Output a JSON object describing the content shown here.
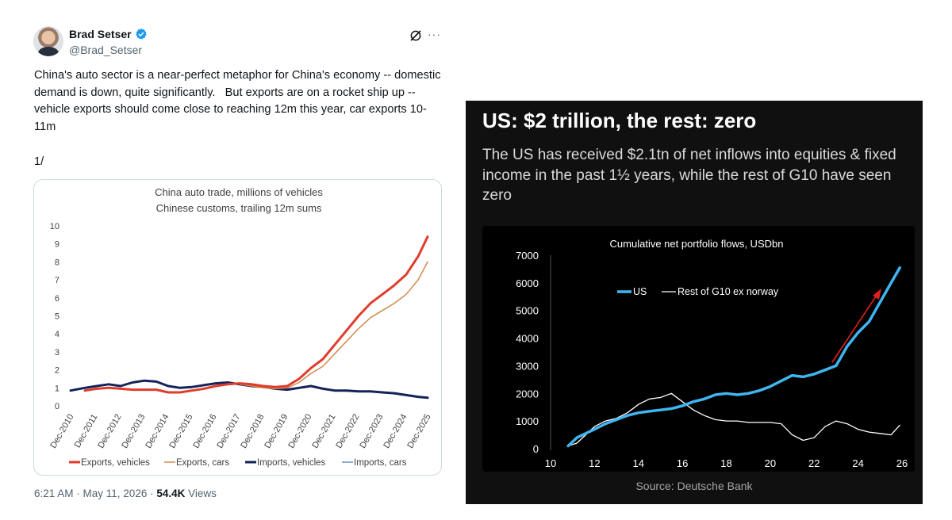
{
  "tweet": {
    "author": {
      "display_name": "Brad Setser",
      "handle": "@Brad_Setser"
    },
    "text": "China's auto sector is a near-perfect metaphor for China's economy -- domestic demand is down, quite significantly.   But exports are on a rocket ship up -- vehicle exports should come close to reaching 12m this year, car exports 10-11m",
    "thread_number": "1/",
    "timestamp": "6:21 AM · May 11, 2026 · ",
    "views_count": "54.4K",
    "views_label": " Views",
    "icons": {
      "verified": "verified-badge-icon",
      "grok": "grok-icon",
      "more": "more-icon"
    },
    "colors": {
      "verified": "#1d9bf0",
      "text_secondary": "#536471",
      "border": "#cfd9de"
    }
  },
  "image": {
    "title": "US: $2 trillion, the rest: zero",
    "subtitle": "The US has received $2.1tn of net inflows into equities & fixed income in the past 1½ years, while the rest of G10 have seen zero",
    "source": "Source: Deutsche Bank"
  },
  "chart_data": [
    {
      "type": "line",
      "title": "China auto trade, millions of vehicles",
      "subtitle": "Chinese customs, trailing 12m sums",
      "xlabel": "",
      "ylabel": "",
      "ylim": [
        0,
        10
      ],
      "yticks": [
        "0",
        "1",
        "2",
        "3",
        "4",
        "5",
        "6",
        "7",
        "8",
        "9",
        "10"
      ],
      "xticks": [
        "Dec-2010",
        "Dec-2011",
        "Dec-2012",
        "Dec-2013",
        "Dec-2014",
        "Dec-2015",
        "Dec-2016",
        "Dec-2017",
        "Dec-2018",
        "Dec-2019",
        "Dec-2020",
        "Dec-2021",
        "Dec-2022",
        "Dec-2023",
        "Dec-2024",
        "Dec-2025"
      ],
      "x": [
        2010.9,
        2011.5,
        2012,
        2012.5,
        2013,
        2013.5,
        2014,
        2014.5,
        2015,
        2015.5,
        2016,
        2016.5,
        2017,
        2017.5,
        2018,
        2018.5,
        2019,
        2019.5,
        2020,
        2020.5,
        2021,
        2021.5,
        2022,
        2022.5,
        2023,
        2023.5,
        2024,
        2024.5,
        2025,
        2025.5,
        2025.9
      ],
      "legend_placement": "bottom",
      "grid": false,
      "series": [
        {
          "name": "Exports, vehicles",
          "color": "#e03c2b",
          "width": 3,
          "values": [
            null,
            0.85,
            0.95,
            1.0,
            0.95,
            0.9,
            0.9,
            0.9,
            0.75,
            0.75,
            0.85,
            0.95,
            1.1,
            1.2,
            1.25,
            1.2,
            1.1,
            1.05,
            1.1,
            1.5,
            2.1,
            2.6,
            3.4,
            4.2,
            5.0,
            5.7,
            6.2,
            6.7,
            7.3,
            8.3,
            9.4
          ]
        },
        {
          "name": "Exports, cars",
          "color": "#d08a4e",
          "width": 1.5,
          "values": [
            null,
            null,
            null,
            null,
            null,
            null,
            null,
            null,
            null,
            null,
            null,
            null,
            null,
            null,
            1.2,
            1.1,
            1.0,
            0.95,
            1.0,
            1.3,
            1.8,
            2.2,
            2.9,
            3.6,
            4.3,
            4.9,
            5.3,
            5.7,
            6.2,
            7.0,
            8.0
          ]
        },
        {
          "name": "Imports, vehicles",
          "color": "#14235a",
          "width": 3,
          "values": [
            0.85,
            1.0,
            1.1,
            1.2,
            1.1,
            1.3,
            1.4,
            1.35,
            1.1,
            1.0,
            1.05,
            1.15,
            1.25,
            1.3,
            1.2,
            1.1,
            1.05,
            0.95,
            0.9,
            1.0,
            1.1,
            0.95,
            0.85,
            0.85,
            0.8,
            0.8,
            0.75,
            0.7,
            0.6,
            0.5,
            0.45
          ]
        },
        {
          "name": "Imports, cars",
          "color": "#6b93c9",
          "width": 1.5,
          "values": [
            null,
            null,
            null,
            null,
            null,
            null,
            null,
            null,
            null,
            null,
            null,
            null,
            null,
            null,
            null,
            null,
            null,
            null,
            0.95,
            1.0,
            1.1,
            0.95,
            0.85,
            0.85,
            0.8,
            0.8,
            0.75,
            0.7,
            0.6,
            0.5,
            0.45
          ]
        }
      ]
    },
    {
      "type": "line",
      "title": "Cumulative net portfolio flows, USDbn",
      "xlabel": "",
      "ylabel": "",
      "ylim": [
        0,
        7000
      ],
      "xlim": [
        10,
        26
      ],
      "yticks": [
        "0",
        "1000",
        "2000",
        "3000",
        "4000",
        "5000",
        "6000",
        "7000"
      ],
      "xticks": [
        "10",
        "12",
        "14",
        "16",
        "18",
        "20",
        "22",
        "24",
        "26"
      ],
      "legend_placement": "top-center",
      "grid": false,
      "annotation": "red arrow indicating rising trend",
      "x": [
        10.8,
        11.2,
        11.6,
        12,
        12.5,
        13,
        13.5,
        14,
        14.5,
        15,
        15.5,
        16,
        16.5,
        17,
        17.5,
        18,
        18.5,
        19,
        19.5,
        20,
        20.5,
        21,
        21.5,
        22,
        22.5,
        23,
        23.5,
        24,
        24.5,
        25,
        25.5,
        25.9
      ],
      "series": [
        {
          "name": "US",
          "color": "#3fb6f0",
          "width": 3.5,
          "values": [
            100,
            400,
            550,
            700,
            900,
            1050,
            1200,
            1300,
            1350,
            1400,
            1450,
            1550,
            1700,
            1800,
            1950,
            2000,
            1950,
            2000,
            2100,
            2250,
            2450,
            2650,
            2600,
            2700,
            2850,
            3000,
            3700,
            4200,
            4600,
            5300,
            6000,
            6550
          ]
        },
        {
          "name": "Rest of G10 ex norway",
          "color": "#ffffff",
          "width": 1.3,
          "values": [
            100,
            200,
            500,
            800,
            1000,
            1100,
            1300,
            1600,
            1800,
            1850,
            2000,
            1700,
            1400,
            1200,
            1050,
            1000,
            1000,
            950,
            950,
            950,
            900,
            500,
            300,
            400,
            800,
            1000,
            900,
            700,
            600,
            550,
            500,
            850
          ]
        }
      ]
    }
  ]
}
